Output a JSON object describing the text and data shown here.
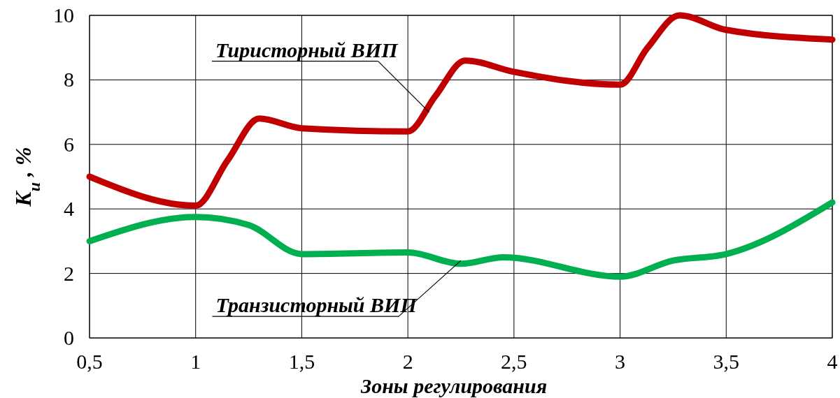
{
  "chart_data": {
    "type": "line",
    "xlabel": "Зоны регулирования",
    "ylabel": "K$_{u}$ , %",
    "xlim": [
      0.5,
      4
    ],
    "xticks": [
      {
        "value": 0.5,
        "label": "0,5"
      },
      1,
      {
        "value": 1.5,
        "label": "1,5"
      },
      2,
      {
        "value": 2.5,
        "label": "2,5"
      },
      3,
      {
        "value": 3.5,
        "label": "3,5"
      },
      4
    ],
    "ylim": [
      0,
      10
    ],
    "yticks": [
      0,
      2,
      4,
      6,
      8,
      10
    ],
    "grid": true,
    "line_style": "solid",
    "series": [
      {
        "color": "#c00000",
        "x": [
          0.5,
          1.0,
          1.15,
          1.3,
          1.5,
          2.0,
          2.13,
          2.27,
          2.5,
          3.0,
          3.13,
          3.28,
          3.5,
          4.0
        ],
        "values": [
          5.0,
          4.1,
          5.5,
          6.8,
          6.5,
          6.4,
          7.5,
          8.6,
          8.25,
          7.85,
          9.0,
          10.0,
          9.55,
          9.25
        ]
      },
      {
        "color": "#00b050",
        "x": [
          0.5,
          1.0,
          1.25,
          1.5,
          2.0,
          2.25,
          2.45,
          3.0,
          3.25,
          3.5,
          4.0
        ],
        "values": [
          3.0,
          3.75,
          3.5,
          2.6,
          2.65,
          2.3,
          2.5,
          1.9,
          2.4,
          2.6,
          4.2
        ]
      }
    ],
    "annotations": [
      {
        "text": "Тиристорный ВИП",
        "x": 2.1,
        "y": 7.0
      },
      {
        "text": "Транзисторный ВИП",
        "x": 2.25,
        "y": 2.4
      }
    ]
  }
}
